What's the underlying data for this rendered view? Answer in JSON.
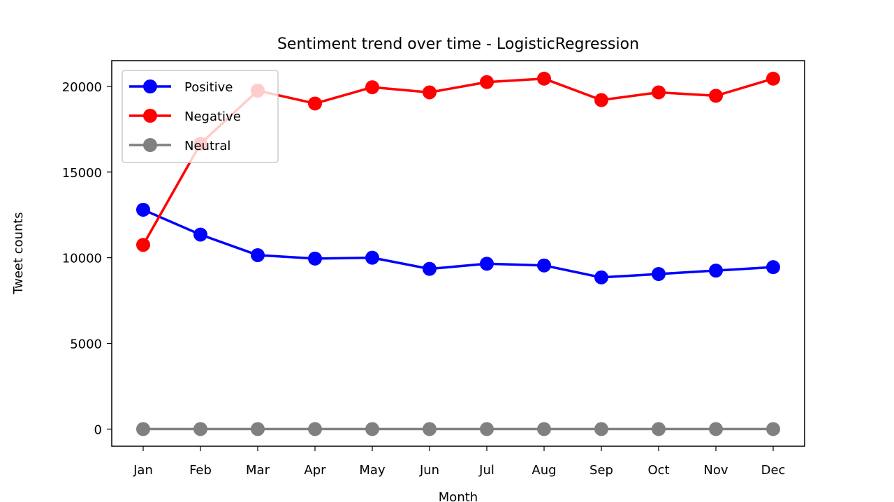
{
  "chart_data": {
    "type": "line",
    "title": "Sentiment trend over time - LogisticRegression",
    "xlabel": "Month",
    "ylabel": "Tweet counts",
    "categories": [
      "Jan",
      "Feb",
      "Mar",
      "Apr",
      "May",
      "Jun",
      "Jul",
      "Aug",
      "Sep",
      "Oct",
      "Nov",
      "Dec"
    ],
    "ylim": [
      -1000,
      21500
    ],
    "yticks": [
      0,
      5000,
      10000,
      15000,
      20000
    ],
    "grid": false,
    "legend_position": "top-left",
    "series": [
      {
        "name": "Positive",
        "color": "#0000ff",
        "marker": "circle",
        "values": [
          12800,
          11350,
          10150,
          9950,
          10000,
          9350,
          9650,
          9550,
          8850,
          9050,
          9250,
          9450
        ]
      },
      {
        "name": "Negative",
        "color": "#ff0000",
        "marker": "circle",
        "values": [
          10750,
          16650,
          19750,
          19000,
          19950,
          19650,
          20250,
          20450,
          19200,
          19650,
          19450,
          20450
        ]
      },
      {
        "name": "Neutral",
        "color": "#808080",
        "marker": "circle",
        "values": [
          0,
          0,
          0,
          0,
          0,
          0,
          0,
          0,
          0,
          0,
          0,
          0
        ]
      }
    ]
  }
}
